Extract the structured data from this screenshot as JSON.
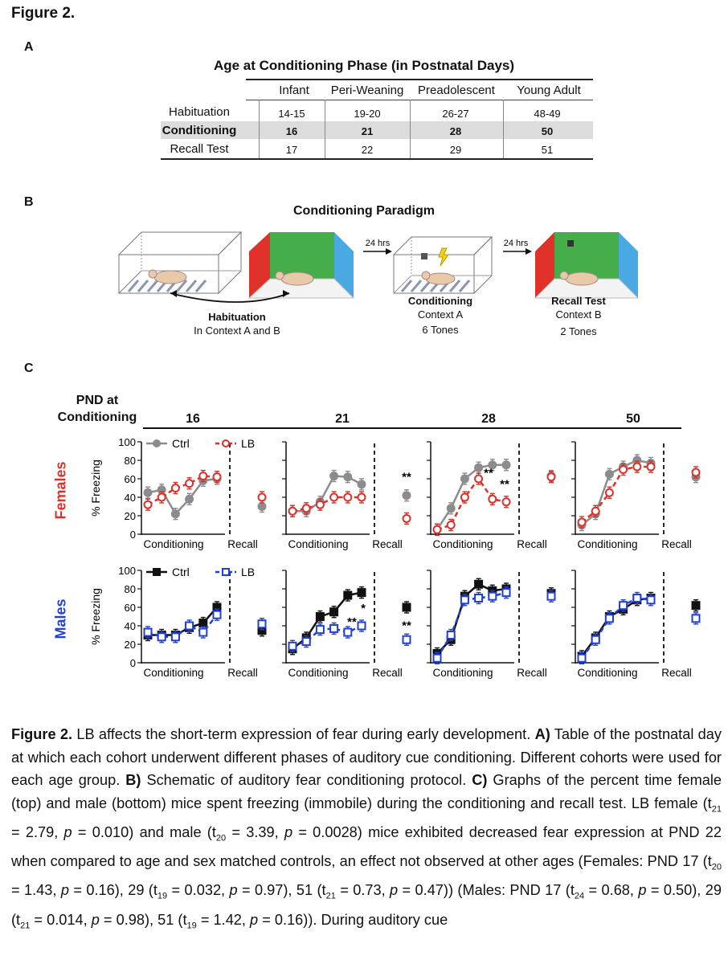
{
  "figure": {
    "title": "Figure 2."
  },
  "panel_a": {
    "letter": "A",
    "table_title": "Age at Conditioning Phase (in Postnatal Days)",
    "columns": [
      "Infant",
      "Peri-Weaning",
      "Preadolescent",
      "Young Adult"
    ],
    "rows": [
      {
        "label": "Habituation",
        "values": [
          "14-15",
          "19-20",
          "26-27",
          "48-49"
        ]
      },
      {
        "label": "Conditioning",
        "values": [
          "16",
          "21",
          "28",
          "50"
        ]
      },
      {
        "label": "Recall Test",
        "values": [
          "17",
          "22",
          "29",
          "51"
        ]
      }
    ]
  },
  "panel_b": {
    "letter": "B",
    "title": "Conditioning Paradigm",
    "arrow1": "24 hrs",
    "arrow2": "24 hrs",
    "habituation_title": "Habituation",
    "habituation_sub": "In Context A and B",
    "conditioning_title": "Conditioning",
    "conditioning_sub1": "Context A",
    "conditioning_sub2": "6 Tones",
    "recall_title": "Recall Test",
    "recall_sub1": "Context B",
    "recall_sub2": "2 Tones"
  },
  "panel_c": {
    "letter": "C",
    "pnd_header_line1": "PND at",
    "pnd_header_line2": "Conditioning",
    "ages": [
      "16",
      "21",
      "28",
      "50"
    ],
    "row_labels": [
      "Females",
      "Males"
    ],
    "ylabel": "% Freezing",
    "xlabel_conditioning": "Conditioning",
    "xlabel_recall": "Recall",
    "legend_female": [
      "Ctrl",
      "LB"
    ],
    "legend_male": [
      "Ctrl",
      "LB"
    ],
    "colors": {
      "female_ctrl": "#8c8c8c",
      "female_lb": "#d9322b",
      "male_ctrl": "#111111",
      "male_lb": "#1f3fd6",
      "females_label": "#d9322b",
      "males_label": "#1f3fd6"
    }
  },
  "chart_data": [
    {
      "type": "line",
      "row": "Females",
      "age": "16",
      "ylim": [
        0,
        100
      ],
      "yticks": [
        "0",
        "20",
        "40",
        "60",
        "80",
        "100"
      ],
      "series": [
        {
          "name": "Ctrl",
          "conditioning": [
            45,
            48,
            22,
            38,
            58,
            60
          ],
          "recall": [
            30
          ]
        },
        {
          "name": "LB",
          "conditioning": [
            32,
            40,
            50,
            55,
            63,
            62
          ],
          "recall": [
            40
          ]
        }
      ],
      "annotations": []
    },
    {
      "type": "line",
      "row": "Females",
      "age": "21",
      "ylim": [
        0,
        100
      ],
      "series": [
        {
          "name": "Ctrl",
          "conditioning": [
            25,
            25,
            35,
            63,
            62,
            54
          ],
          "recall": [
            42
          ]
        },
        {
          "name": "LB",
          "conditioning": [
            25,
            28,
            32,
            40,
            40,
            40
          ],
          "recall": [
            17
          ]
        }
      ],
      "annotations": [
        "**"
      ]
    },
    {
      "type": "line",
      "row": "Females",
      "age": "28",
      "ylim": [
        0,
        100
      ],
      "series": [
        {
          "name": "Ctrl",
          "conditioning": [
            5,
            28,
            60,
            72,
            75,
            75
          ],
          "recall": [
            63
          ]
        },
        {
          "name": "LB",
          "conditioning": [
            5,
            10,
            40,
            60,
            38,
            35
          ],
          "recall": [
            62
          ]
        }
      ],
      "annotations": [
        "**",
        "**"
      ]
    },
    {
      "type": "line",
      "row": "Females",
      "age": "50",
      "ylim": [
        0,
        100
      ],
      "series": [
        {
          "name": "Ctrl",
          "conditioning": [
            10,
            22,
            65,
            73,
            80,
            77
          ],
          "recall": [
            62
          ]
        },
        {
          "name": "LB",
          "conditioning": [
            13,
            25,
            45,
            70,
            73,
            73
          ],
          "recall": [
            67
          ]
        }
      ],
      "annotations": []
    },
    {
      "type": "line",
      "row": "Males",
      "age": "16",
      "ylim": [
        0,
        100
      ],
      "yticks": [
        "0",
        "20",
        "40",
        "60",
        "80",
        "100"
      ],
      "series": [
        {
          "name": "Ctrl",
          "conditioning": [
            30,
            30,
            30,
            38,
            43,
            60
          ],
          "recall": [
            35
          ]
        },
        {
          "name": "LB",
          "conditioning": [
            33,
            28,
            28,
            40,
            33,
            52
          ],
          "recall": [
            42
          ]
        }
      ],
      "annotations": []
    },
    {
      "type": "line",
      "row": "Males",
      "age": "21",
      "ylim": [
        0,
        100
      ],
      "series": [
        {
          "name": "Ctrl",
          "conditioning": [
            15,
            27,
            50,
            55,
            73,
            76
          ],
          "recall": [
            60
          ]
        },
        {
          "name": "LB",
          "conditioning": [
            18,
            23,
            36,
            37,
            33,
            40
          ],
          "recall": [
            25
          ]
        }
      ],
      "annotations": [
        "**",
        "*",
        "**"
      ]
    },
    {
      "type": "line",
      "row": "Males",
      "age": "28",
      "ylim": [
        0,
        100
      ],
      "series": [
        {
          "name": "Ctrl",
          "conditioning": [
            10,
            25,
            72,
            85,
            78,
            80
          ],
          "recall": [
            75
          ]
        },
        {
          "name": "LB",
          "conditioning": [
            5,
            30,
            68,
            70,
            72,
            76
          ],
          "recall": [
            72
          ]
        }
      ],
      "annotations": []
    },
    {
      "type": "line",
      "row": "Males",
      "age": "50",
      "ylim": [
        0,
        100
      ],
      "series": [
        {
          "name": "Ctrl",
          "conditioning": [
            7,
            27,
            50,
            58,
            68,
            70
          ],
          "recall": [
            62
          ]
        },
        {
          "name": "LB",
          "conditioning": [
            5,
            25,
            48,
            62,
            70,
            68
          ],
          "recall": [
            48
          ]
        }
      ],
      "annotations": []
    }
  ],
  "caption": {
    "bold_prefix": "Figure 2.",
    "text1": " LB affects the short-term expression of fear during early development. ",
    "a_label": "A)",
    "text2": " Table of the postnatal day at which each cohort underwent different phases of auditory cue conditioning. Different cohorts were used for each age group. ",
    "b_label": "B)",
    "text3": " Schematic of auditory fear conditioning protocol. ",
    "c_label": "C)",
    "text4": " Graphs of the percent time female (top) and male (bottom) mice spent freezing (immobile) during the conditioning and recall test. LB female (t",
    "sub1": "21",
    "text5": " = 2.79, ",
    "p1": "p",
    "text6": " = 0.010) and male (t",
    "sub2": "20",
    "text7": " = 3.39, ",
    "p2": "p",
    "text8": " = 0.0028) mice exhibited decreased fear expression at PND 22 when compared to age and sex matched controls, an effect not observed at other ages (Females: PND 17 (t",
    "sub3": "20",
    "text9": " = 1.43, ",
    "p3": "p",
    "text10": " = 0.16), 29 (t",
    "sub4": "19",
    "text11": " = 0.032, ",
    "p4": "p",
    "text12": " = 0.97), 51 (t",
    "sub5": "21",
    "text13": " = 0.73, ",
    "p5": "p",
    "text14": " = 0.47)) (Males: PND 17 (t",
    "sub6": "24",
    "text15": " = 0.68, ",
    "p6": "p",
    "text16": " = 0.50), 29 (t",
    "sub7": "21",
    "text17": " = 0.014, ",
    "p7": "p",
    "text18": " = 0.98), 51 (t",
    "sub8": "19",
    "text19": " = 1.42, ",
    "p8": "p",
    "text20": " = 0.16)). During auditory cue"
  }
}
